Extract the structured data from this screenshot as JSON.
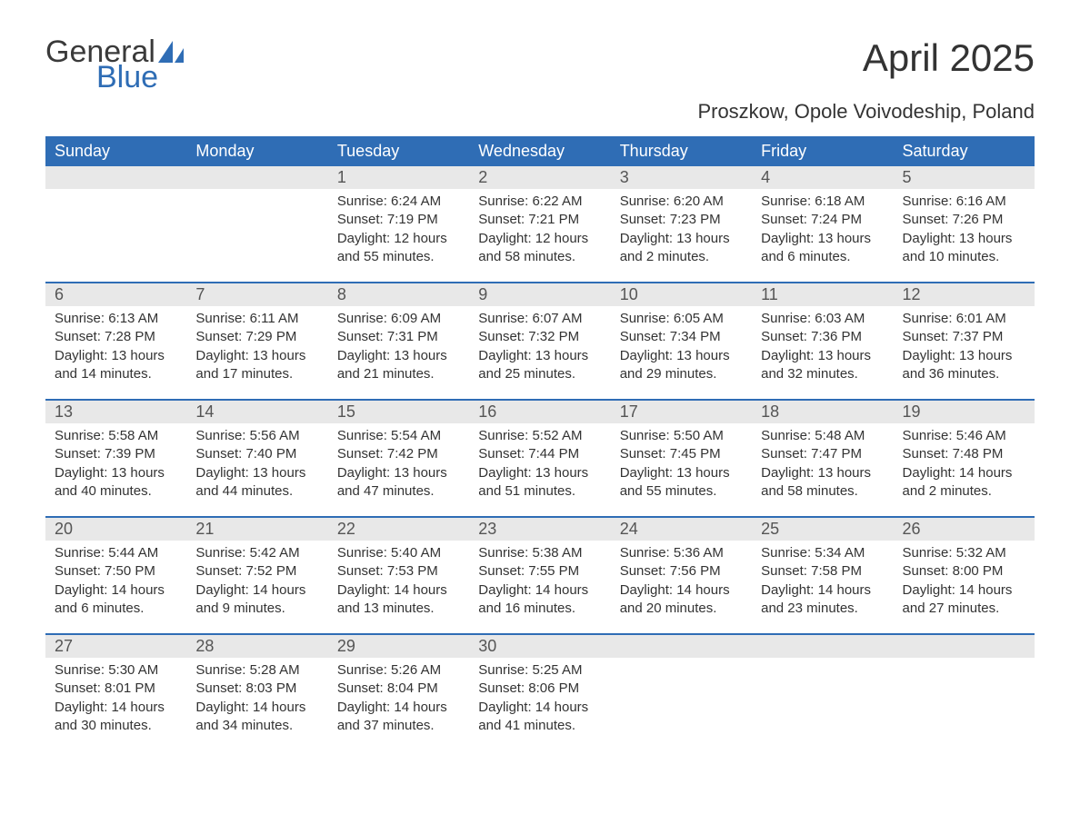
{
  "logo": {
    "part1": "General",
    "part2": "Blue"
  },
  "title": "April 2025",
  "subtitle": "Proszkow, Opole Voivodeship, Poland",
  "colors": {
    "header_bg": "#2f6db5",
    "header_text": "#ffffff",
    "daynum_bg": "#e8e8e8",
    "text": "#333333",
    "logo_blue": "#2f6db5",
    "sail": "#2f6db5"
  },
  "weekdays": [
    "Sunday",
    "Monday",
    "Tuesday",
    "Wednesday",
    "Thursday",
    "Friday",
    "Saturday"
  ],
  "weeks": [
    [
      {
        "day": "",
        "sunrise": "",
        "sunset": "",
        "dl1": "",
        "dl2": ""
      },
      {
        "day": "",
        "sunrise": "",
        "sunset": "",
        "dl1": "",
        "dl2": ""
      },
      {
        "day": "1",
        "sunrise": "Sunrise: 6:24 AM",
        "sunset": "Sunset: 7:19 PM",
        "dl1": "Daylight: 12 hours",
        "dl2": "and 55 minutes."
      },
      {
        "day": "2",
        "sunrise": "Sunrise: 6:22 AM",
        "sunset": "Sunset: 7:21 PM",
        "dl1": "Daylight: 12 hours",
        "dl2": "and 58 minutes."
      },
      {
        "day": "3",
        "sunrise": "Sunrise: 6:20 AM",
        "sunset": "Sunset: 7:23 PM",
        "dl1": "Daylight: 13 hours",
        "dl2": "and 2 minutes."
      },
      {
        "day": "4",
        "sunrise": "Sunrise: 6:18 AM",
        "sunset": "Sunset: 7:24 PM",
        "dl1": "Daylight: 13 hours",
        "dl2": "and 6 minutes."
      },
      {
        "day": "5",
        "sunrise": "Sunrise: 6:16 AM",
        "sunset": "Sunset: 7:26 PM",
        "dl1": "Daylight: 13 hours",
        "dl2": "and 10 minutes."
      }
    ],
    [
      {
        "day": "6",
        "sunrise": "Sunrise: 6:13 AM",
        "sunset": "Sunset: 7:28 PM",
        "dl1": "Daylight: 13 hours",
        "dl2": "and 14 minutes."
      },
      {
        "day": "7",
        "sunrise": "Sunrise: 6:11 AM",
        "sunset": "Sunset: 7:29 PM",
        "dl1": "Daylight: 13 hours",
        "dl2": "and 17 minutes."
      },
      {
        "day": "8",
        "sunrise": "Sunrise: 6:09 AM",
        "sunset": "Sunset: 7:31 PM",
        "dl1": "Daylight: 13 hours",
        "dl2": "and 21 minutes."
      },
      {
        "day": "9",
        "sunrise": "Sunrise: 6:07 AM",
        "sunset": "Sunset: 7:32 PM",
        "dl1": "Daylight: 13 hours",
        "dl2": "and 25 minutes."
      },
      {
        "day": "10",
        "sunrise": "Sunrise: 6:05 AM",
        "sunset": "Sunset: 7:34 PM",
        "dl1": "Daylight: 13 hours",
        "dl2": "and 29 minutes."
      },
      {
        "day": "11",
        "sunrise": "Sunrise: 6:03 AM",
        "sunset": "Sunset: 7:36 PM",
        "dl1": "Daylight: 13 hours",
        "dl2": "and 32 minutes."
      },
      {
        "day": "12",
        "sunrise": "Sunrise: 6:01 AM",
        "sunset": "Sunset: 7:37 PM",
        "dl1": "Daylight: 13 hours",
        "dl2": "and 36 minutes."
      }
    ],
    [
      {
        "day": "13",
        "sunrise": "Sunrise: 5:58 AM",
        "sunset": "Sunset: 7:39 PM",
        "dl1": "Daylight: 13 hours",
        "dl2": "and 40 minutes."
      },
      {
        "day": "14",
        "sunrise": "Sunrise: 5:56 AM",
        "sunset": "Sunset: 7:40 PM",
        "dl1": "Daylight: 13 hours",
        "dl2": "and 44 minutes."
      },
      {
        "day": "15",
        "sunrise": "Sunrise: 5:54 AM",
        "sunset": "Sunset: 7:42 PM",
        "dl1": "Daylight: 13 hours",
        "dl2": "and 47 minutes."
      },
      {
        "day": "16",
        "sunrise": "Sunrise: 5:52 AM",
        "sunset": "Sunset: 7:44 PM",
        "dl1": "Daylight: 13 hours",
        "dl2": "and 51 minutes."
      },
      {
        "day": "17",
        "sunrise": "Sunrise: 5:50 AM",
        "sunset": "Sunset: 7:45 PM",
        "dl1": "Daylight: 13 hours",
        "dl2": "and 55 minutes."
      },
      {
        "day": "18",
        "sunrise": "Sunrise: 5:48 AM",
        "sunset": "Sunset: 7:47 PM",
        "dl1": "Daylight: 13 hours",
        "dl2": "and 58 minutes."
      },
      {
        "day": "19",
        "sunrise": "Sunrise: 5:46 AM",
        "sunset": "Sunset: 7:48 PM",
        "dl1": "Daylight: 14 hours",
        "dl2": "and 2 minutes."
      }
    ],
    [
      {
        "day": "20",
        "sunrise": "Sunrise: 5:44 AM",
        "sunset": "Sunset: 7:50 PM",
        "dl1": "Daylight: 14 hours",
        "dl2": "and 6 minutes."
      },
      {
        "day": "21",
        "sunrise": "Sunrise: 5:42 AM",
        "sunset": "Sunset: 7:52 PM",
        "dl1": "Daylight: 14 hours",
        "dl2": "and 9 minutes."
      },
      {
        "day": "22",
        "sunrise": "Sunrise: 5:40 AM",
        "sunset": "Sunset: 7:53 PM",
        "dl1": "Daylight: 14 hours",
        "dl2": "and 13 minutes."
      },
      {
        "day": "23",
        "sunrise": "Sunrise: 5:38 AM",
        "sunset": "Sunset: 7:55 PM",
        "dl1": "Daylight: 14 hours",
        "dl2": "and 16 minutes."
      },
      {
        "day": "24",
        "sunrise": "Sunrise: 5:36 AM",
        "sunset": "Sunset: 7:56 PM",
        "dl1": "Daylight: 14 hours",
        "dl2": "and 20 minutes."
      },
      {
        "day": "25",
        "sunrise": "Sunrise: 5:34 AM",
        "sunset": "Sunset: 7:58 PM",
        "dl1": "Daylight: 14 hours",
        "dl2": "and 23 minutes."
      },
      {
        "day": "26",
        "sunrise": "Sunrise: 5:32 AM",
        "sunset": "Sunset: 8:00 PM",
        "dl1": "Daylight: 14 hours",
        "dl2": "and 27 minutes."
      }
    ],
    [
      {
        "day": "27",
        "sunrise": "Sunrise: 5:30 AM",
        "sunset": "Sunset: 8:01 PM",
        "dl1": "Daylight: 14 hours",
        "dl2": "and 30 minutes."
      },
      {
        "day": "28",
        "sunrise": "Sunrise: 5:28 AM",
        "sunset": "Sunset: 8:03 PM",
        "dl1": "Daylight: 14 hours",
        "dl2": "and 34 minutes."
      },
      {
        "day": "29",
        "sunrise": "Sunrise: 5:26 AM",
        "sunset": "Sunset: 8:04 PM",
        "dl1": "Daylight: 14 hours",
        "dl2": "and 37 minutes."
      },
      {
        "day": "30",
        "sunrise": "Sunrise: 5:25 AM",
        "sunset": "Sunset: 8:06 PM",
        "dl1": "Daylight: 14 hours",
        "dl2": "and 41 minutes."
      },
      {
        "day": "",
        "sunrise": "",
        "sunset": "",
        "dl1": "",
        "dl2": ""
      },
      {
        "day": "",
        "sunrise": "",
        "sunset": "",
        "dl1": "",
        "dl2": ""
      },
      {
        "day": "",
        "sunrise": "",
        "sunset": "",
        "dl1": "",
        "dl2": ""
      }
    ]
  ]
}
